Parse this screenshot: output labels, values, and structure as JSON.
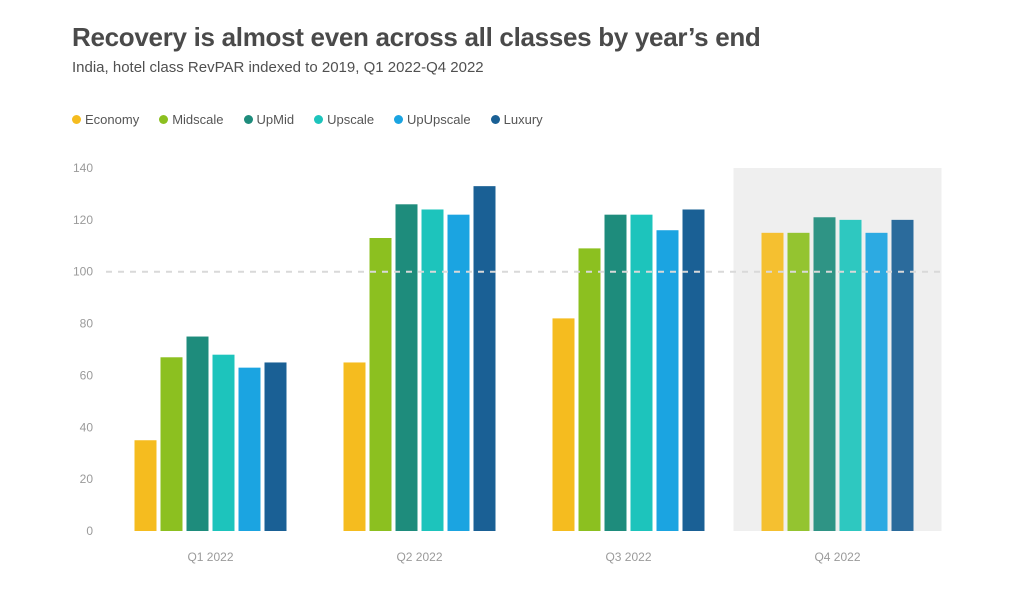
{
  "header": {
    "title": "Recovery is almost even across all classes by year’s end",
    "subtitle": "India, hotel class RevPAR indexed to 2019, Q1 2022-Q4 2022"
  },
  "chart_data": {
    "type": "bar",
    "title": "Recovery is almost even across all classes by year’s end",
    "subtitle": "India, hotel class RevPAR indexed to 2019, Q1 2022-Q4 2022",
    "xlabel": "",
    "ylabel": "",
    "categories": [
      "Q1 2022",
      "Q2 2022",
      "Q3 2022",
      "Q4 2022"
    ],
    "ylim": [
      0,
      140
    ],
    "yticks": [
      "0",
      "20",
      "40",
      "60",
      "80",
      "100",
      "120",
      "140"
    ],
    "reference_line": 100,
    "highlighted_category": "Q4 2022",
    "legend_position": "top-left",
    "grid": false,
    "series": [
      {
        "name": "Economy",
        "color": "#F5BC1F",
        "values": [
          35,
          65,
          82,
          115
        ]
      },
      {
        "name": "Midscale",
        "color": "#8CC020",
        "values": [
          67,
          113,
          109,
          115
        ]
      },
      {
        "name": "UpMid",
        "color": "#1E8C7C",
        "values": [
          75,
          126,
          122,
          121
        ]
      },
      {
        "name": "Upscale",
        "color": "#1DC4BC",
        "values": [
          68,
          124,
          122,
          120
        ]
      },
      {
        "name": "UpUpscale",
        "color": "#1BA4E1",
        "values": [
          63,
          122,
          116,
          115
        ]
      },
      {
        "name": "Luxury",
        "color": "#1A6095",
        "values": [
          65,
          133,
          124,
          120
        ]
      }
    ]
  }
}
